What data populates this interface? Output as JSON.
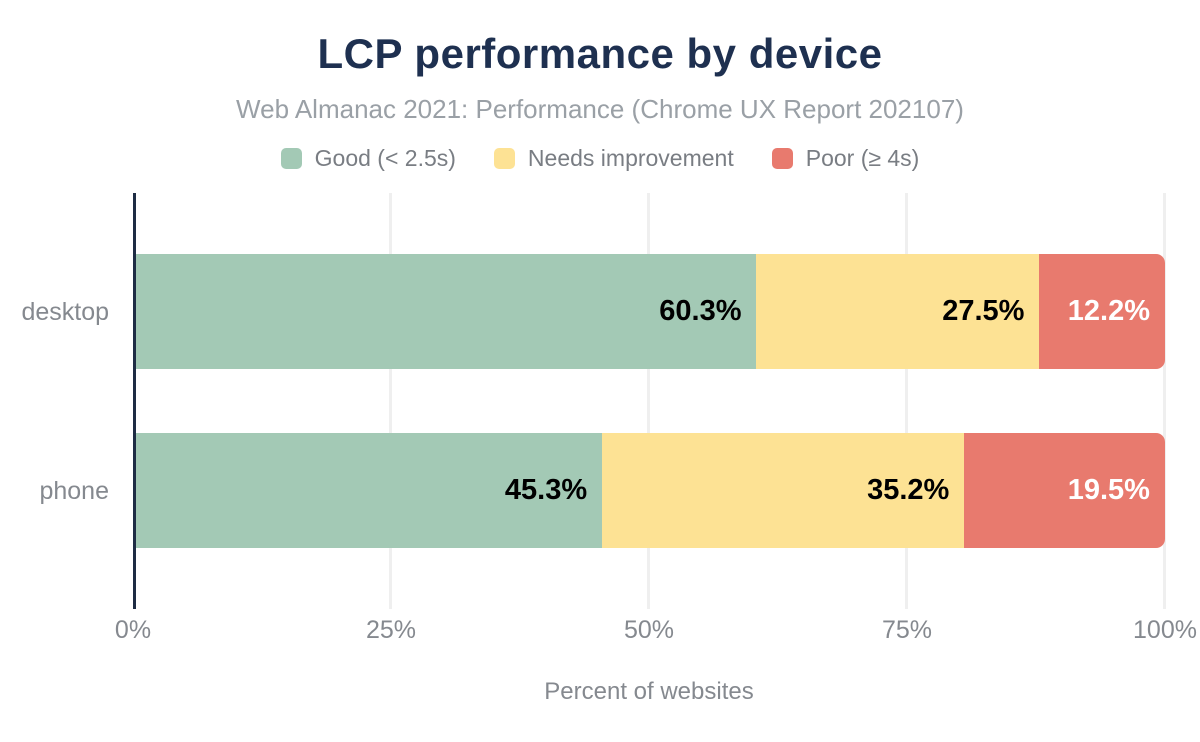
{
  "header": {
    "title": "LCP performance by device",
    "subtitle": "Web Almanac 2021: Performance (Chrome UX Report 202107)"
  },
  "colors": {
    "title_text": "#1e3050",
    "subtitle_text": "#9aa0a6",
    "muted_text": "#85898f",
    "axis_line": "#1e2c44",
    "gridline": "#efefef",
    "background": "#ffffff"
  },
  "chart_data": {
    "type": "bar",
    "orientation": "horizontal-stacked",
    "title": "LCP performance by device",
    "subtitle": "Web Almanac 2021: Performance (Chrome UX Report 202107)",
    "categories": [
      "desktop",
      "phone"
    ],
    "series": [
      {
        "name": "Good (< 2.5s)",
        "color": "#a3c9b5",
        "label_color": "#000000",
        "values": [
          60.3,
          45.3
        ]
      },
      {
        "name": "Needs improvement",
        "color": "#fde294",
        "label_color": "#000000",
        "values": [
          27.5,
          35.2
        ]
      },
      {
        "name": "Poor (≥ 4s)",
        "color": "#e87a6e",
        "label_color": "#ffffff",
        "values": [
          12.2,
          19.5
        ]
      }
    ],
    "xlim": [
      0,
      100
    ],
    "x_ticks": [
      "0%",
      "25%",
      "50%",
      "75%",
      "100%"
    ],
    "xlabel": "Percent of websites",
    "value_label_format": "one-decimal-percent",
    "grid": true,
    "legend_position": "top"
  }
}
